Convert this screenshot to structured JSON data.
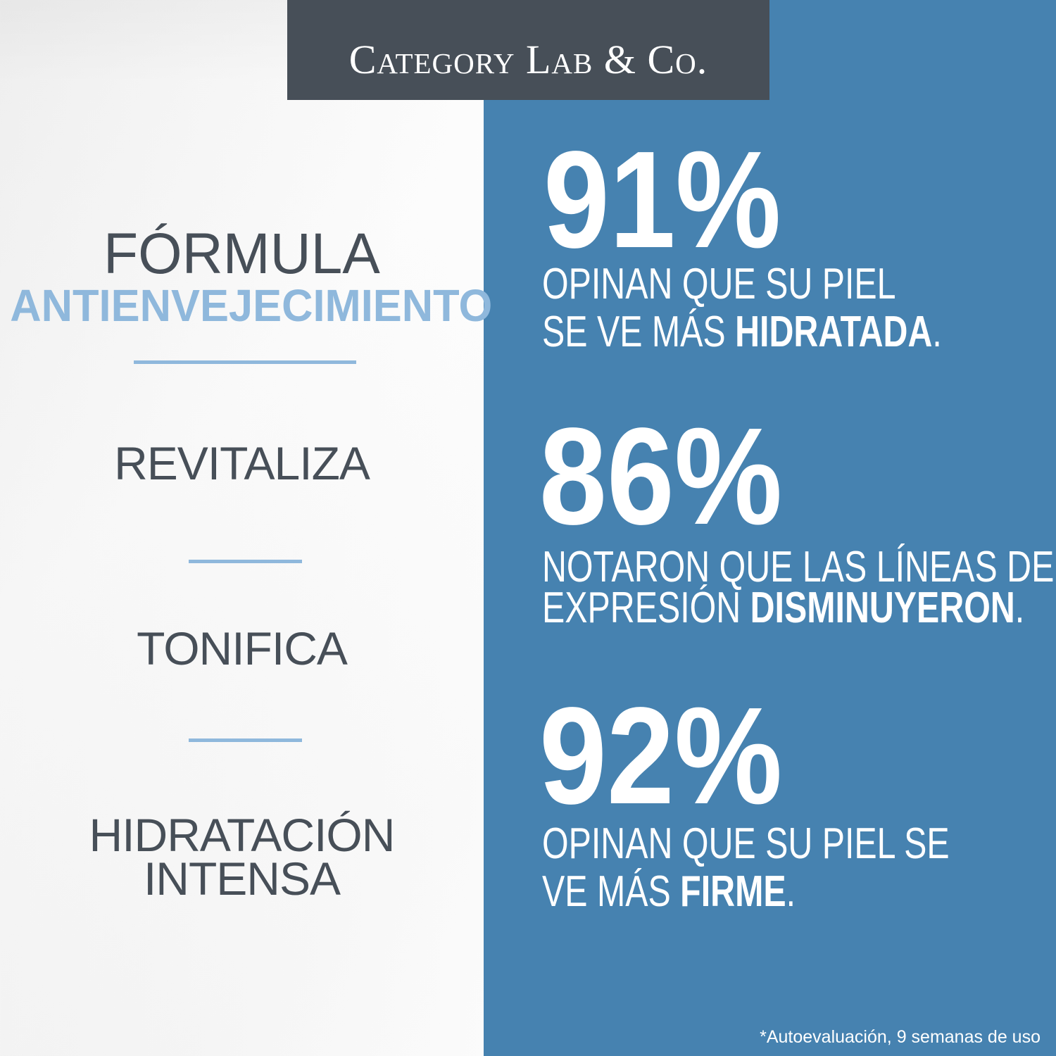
{
  "brand": {
    "logo_text": "Category Lab & Co.",
    "header_color": "#474f58",
    "panel_color": "#4682b0",
    "accent_color": "#8fb8dc"
  },
  "left": {
    "title_line1": "FÓRMULA",
    "title_line2": "ANTIENVEJECIMIENTO",
    "benefits": [
      "REVITALIZA",
      "TONIFICA",
      "HIDRATACIÓN",
      "INTENSA"
    ]
  },
  "stats": [
    {
      "value": "91%",
      "line1": "OPINAN QUE SU PIEL",
      "line2_pre": "SE VE MÁS ",
      "line2_bold": "HIDRATADA",
      "line2_post": "."
    },
    {
      "value": "86%",
      "line1": "NOTARON QUE LAS LÍNEAS DE",
      "line2_pre": "EXPRESIÓN ",
      "line2_bold": "DISMINUYERON",
      "line2_post": "."
    },
    {
      "value": "92%",
      "line1": "OPINAN QUE SU PIEL SE",
      "line2_pre": "VE MÁS ",
      "line2_bold": "FIRME",
      "line2_post": "."
    }
  ],
  "footnote": "*Autoevaluación, 9 semanas de uso"
}
